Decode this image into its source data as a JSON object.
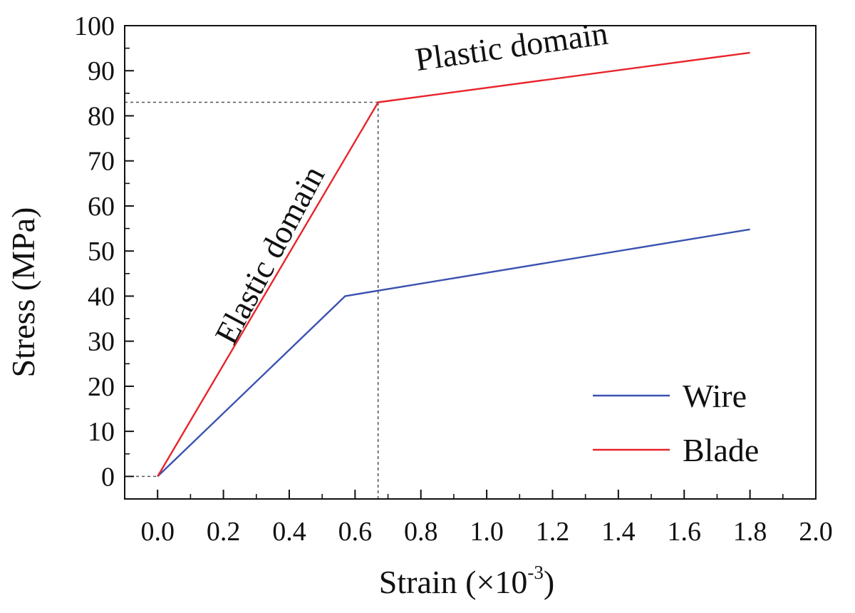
{
  "chart_data": {
    "type": "line",
    "xlabel": "Strain (×10",
    "xlabel_sup": "-3",
    "xlabel_close": ")",
    "ylabel": "Stress (MPa)",
    "xlim": [
      -0.1,
      2.0
    ],
    "ylim": [
      -5,
      100
    ],
    "x_ticks": [
      "0.0",
      "0.2",
      "0.4",
      "0.6",
      "0.8",
      "1.0",
      "1.2",
      "1.4",
      "1.6",
      "1.8",
      "2.0"
    ],
    "y_ticks": [
      "0",
      "10",
      "20",
      "30",
      "40",
      "50",
      "60",
      "70",
      "80",
      "90",
      "100"
    ],
    "grid": false,
    "legend_position": "bottom-right",
    "series": [
      {
        "name": "Wire",
        "color": "#3a52b0",
        "x": [
          0.0,
          0.57,
          1.8
        ],
        "y": [
          0,
          40,
          54.8
        ]
      },
      {
        "name": "Blade",
        "color": "#e8242c",
        "x": [
          0.0,
          0.67,
          1.8
        ],
        "y": [
          0,
          83,
          94
        ]
      }
    ],
    "reference_lines": [
      {
        "type": "horizontal",
        "y": 83,
        "x_from": -0.1,
        "x_to": 0.67,
        "style": "dotted"
      },
      {
        "type": "vertical",
        "x": 0.67,
        "y_from": -5,
        "y_to": 83,
        "style": "dotted"
      },
      {
        "type": "horizontal",
        "y": 0,
        "x_from": -0.1,
        "x_to": 0.0,
        "style": "dotted"
      }
    ],
    "annotations": [
      {
        "text": "Elastic domain",
        "x": 0.37,
        "y": 48,
        "angle_deg": -62
      },
      {
        "text": "Plastic domain",
        "x": 1.08,
        "y": 93,
        "angle_deg": -8
      }
    ]
  }
}
